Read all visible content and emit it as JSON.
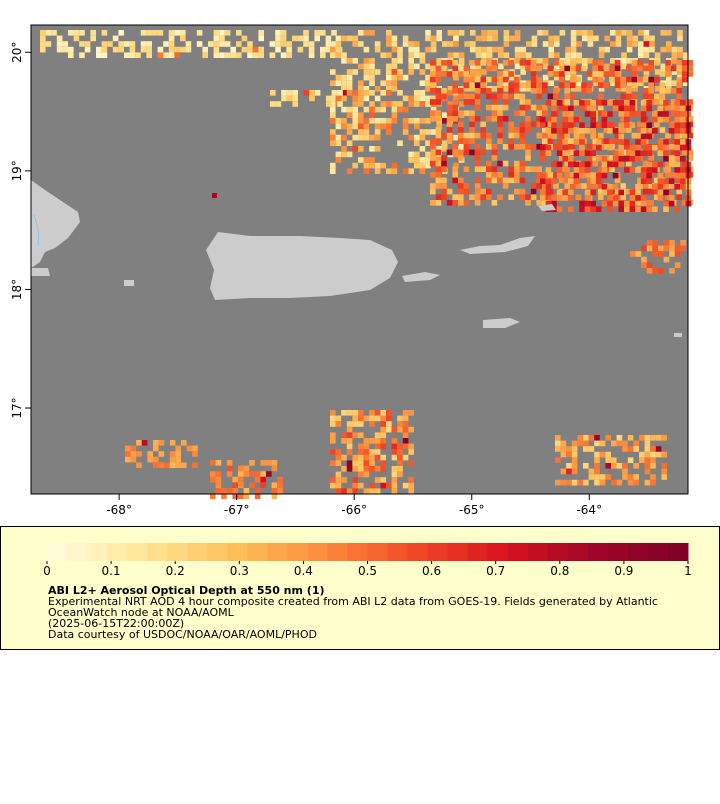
{
  "map": {
    "xlim": [
      -68.75,
      -63.16
    ],
    "ylim": [
      16.275,
      20.23
    ],
    "xticks": [
      {
        "value": -68,
        "label": "-68°"
      },
      {
        "value": -67,
        "label": "-67°"
      },
      {
        "value": -66,
        "label": "-66°"
      },
      {
        "value": -65,
        "label": "-65°"
      },
      {
        "value": -64,
        "label": "-64°"
      }
    ],
    "yticks": [
      {
        "value": 20,
        "label": "20°"
      },
      {
        "value": 19,
        "label": "19°"
      },
      {
        "value": 18,
        "label": "18°"
      },
      {
        "value": 17,
        "label": "17°"
      }
    ]
  },
  "colorbar": {
    "range": [
      0,
      1
    ],
    "ticks": [
      0,
      0.1,
      0.2,
      0.3,
      0.4,
      0.5,
      0.6,
      0.7,
      0.8,
      0.9,
      1
    ],
    "colors": [
      "#ffffe0",
      "#ffe79a",
      "#fec35c",
      "#fd8c3c",
      "#f24a26",
      "#d7121e",
      "#9e0629",
      "#800026"
    ]
  },
  "legend": {
    "title": "ABI L2+ Aerosol Optical Depth at 550 nm (1)",
    "lines": [
      "Experimental NRT AOD 4 hour composite created from ABI L2 data from GOES-19. Fields generated by Atlantic",
      "OceanWatch node at NOAA/AOML",
      "(2025-06-15T22:00:00Z)",
      "Data courtesy of USDOC/NOAA/OAR/AOML/PHOD"
    ]
  }
}
